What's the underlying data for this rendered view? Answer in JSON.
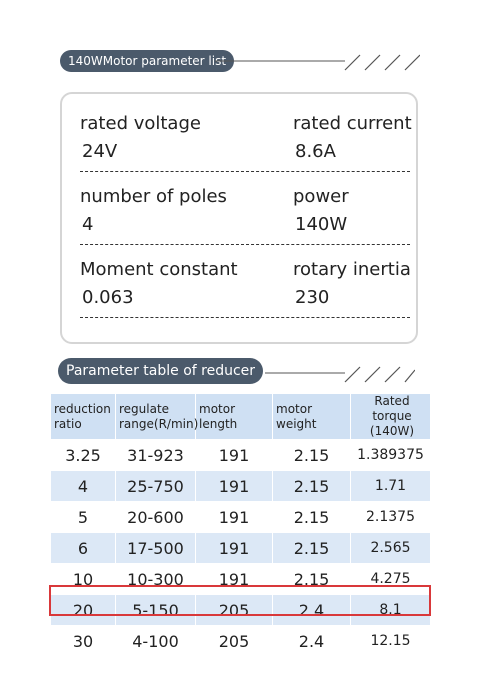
{
  "motor": {
    "title": "140WMotor parameter list",
    "params": [
      {
        "label": "rated voltage",
        "value": "24V"
      },
      {
        "label": "rated current",
        "value": "8.6A"
      },
      {
        "label": "number of poles",
        "value": "4"
      },
      {
        "label": "power",
        "value": "140W"
      },
      {
        "label": "Moment constant",
        "value": "0.063"
      },
      {
        "label": "rotary inertia",
        "value": "230"
      }
    ]
  },
  "reducer": {
    "title": "Parameter table of reducer",
    "headers": [
      "reduction ratio",
      "regulate range(R/min)",
      "motor length",
      "motor weight",
      "Rated torque (140W)"
    ],
    "rows": [
      [
        "3.25",
        "31-923",
        "191",
        "2.15",
        "1.389375"
      ],
      [
        "4",
        "25-750",
        "191",
        "2.15",
        "1.71"
      ],
      [
        "5",
        "20-600",
        "191",
        "2.15",
        "2.1375"
      ],
      [
        "6",
        "17-500",
        "191",
        "2.15",
        "2.565"
      ],
      [
        "10",
        "10-300",
        "191",
        "2.15",
        "4.275"
      ],
      [
        "20",
        "5-150",
        "205",
        "2.4",
        "8.1"
      ],
      [
        "30",
        "4-100",
        "205",
        "2.4",
        "12.15"
      ]
    ]
  }
}
